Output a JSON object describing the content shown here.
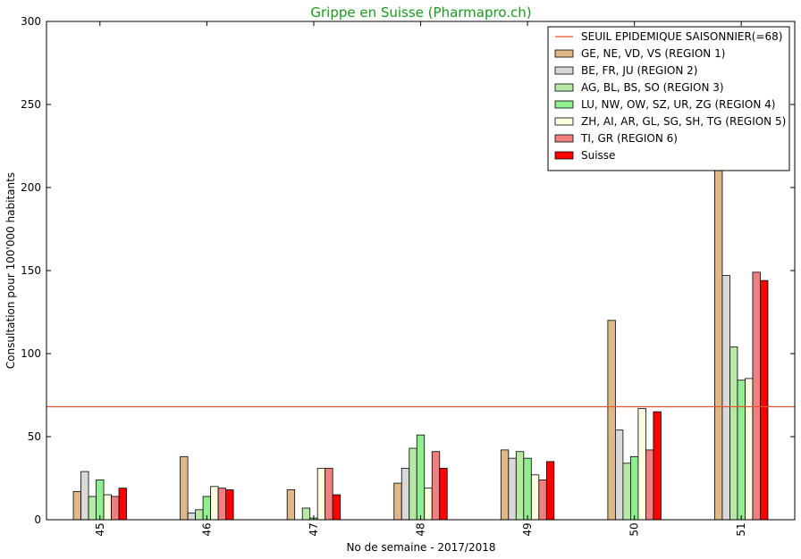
{
  "chart_data": {
    "type": "bar",
    "title": "Grippe en Suisse (Pharmapro.ch)",
    "xlabel": "No de semaine - 2017/2018",
    "ylabel": "Consultation pour 100'000 habitants",
    "ylim": [
      0,
      300
    ],
    "yticks": [
      "0",
      "50",
      "100",
      "150",
      "200",
      "250",
      "300"
    ],
    "categories": [
      "45",
      "46",
      "47",
      "48",
      "49",
      "50",
      "51"
    ],
    "threshold": {
      "name": "SEUIL EPIDEMIQUE SAISONNIER(=68)",
      "value": 68,
      "color": "#e8532f"
    },
    "series": [
      {
        "name": "GE, NE, VD, VS (REGION 1)",
        "color": "#deb887",
        "values": [
          17,
          38,
          18,
          22,
          42,
          120,
          216
        ]
      },
      {
        "name": "BE, FR, JU (REGION 2)",
        "color": "#d9d9d9",
        "values": [
          29,
          4,
          0,
          31,
          37,
          54,
          147
        ]
      },
      {
        "name": "AG, BL, BS, SO (REGION 3)",
        "color": "#b8e8a6",
        "values": [
          14,
          6,
          7,
          43,
          41,
          34,
          104
        ]
      },
      {
        "name": "LU, NW, OW, SZ, UR, ZG (REGION 4)",
        "color": "#90ee90",
        "values": [
          24,
          14,
          1,
          51,
          37,
          38,
          84
        ]
      },
      {
        "name": "ZH, AI, AR, GL, SG, SH, TG (REGION 5)",
        "color": "#fffde0",
        "values": [
          15,
          20,
          31,
          19,
          27,
          67,
          85
        ]
      },
      {
        "name": "TI, GR (REGION 6)",
        "color": "#f08080",
        "values": [
          14,
          19,
          31,
          41,
          24,
          42,
          149
        ]
      },
      {
        "name": "Suisse",
        "color": "#ff0000",
        "values": [
          19,
          18,
          15,
          31,
          35,
          65,
          144
        ]
      }
    ],
    "legend_position": "top-right",
    "grid": false
  }
}
